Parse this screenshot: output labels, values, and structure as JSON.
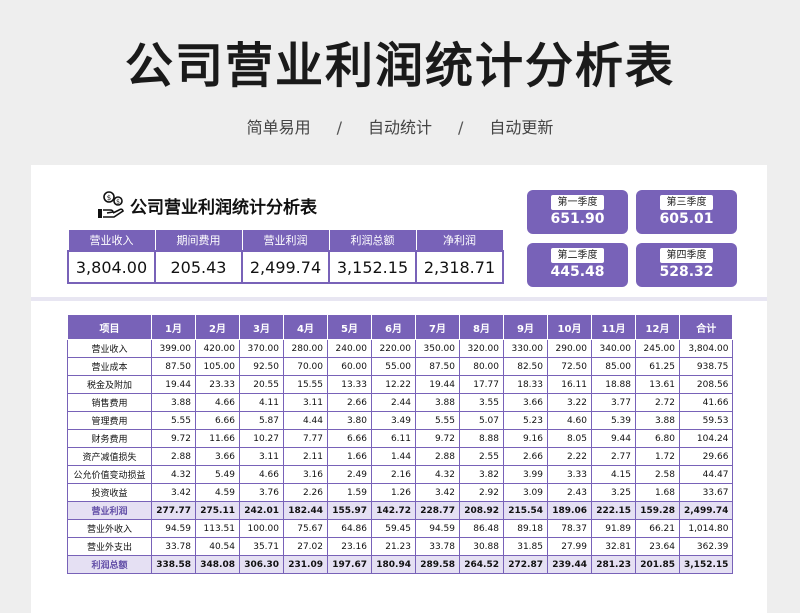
{
  "hero": {
    "title": "公司营业利润统计分析表",
    "tags": [
      "简单易用",
      "自动统计",
      "自动更新"
    ],
    "separator": "/"
  },
  "sheet": {
    "title": "公司营业利润统计分析表",
    "icon": "money-hand-icon",
    "summary": {
      "headers": [
        "营业收入",
        "期间费用",
        "营业利润",
        "利润总额",
        "净利润"
      ],
      "values": [
        "3,804.00",
        "205.43",
        "2,499.74",
        "3,152.15",
        "2,318.71"
      ]
    },
    "quarters": [
      {
        "label": "第一季度",
        "value": "651.90"
      },
      {
        "label": "第三季度",
        "value": "605.01"
      },
      {
        "label": "第二季度",
        "value": "445.48"
      },
      {
        "label": "第四季度",
        "value": "528.32"
      }
    ],
    "table": {
      "headers": [
        "项目",
        "1月",
        "2月",
        "3月",
        "4月",
        "5月",
        "6月",
        "7月",
        "8月",
        "9月",
        "10月",
        "11月",
        "12月",
        "合计"
      ],
      "rows": [
        {
          "cells": [
            "营业收入",
            "399.00",
            "420.00",
            "370.00",
            "280.00",
            "240.00",
            "220.00",
            "350.00",
            "320.00",
            "330.00",
            "290.00",
            "340.00",
            "245.00",
            "3,804.00"
          ]
        },
        {
          "cells": [
            "营业成本",
            "87.50",
            "105.00",
            "92.50",
            "70.00",
            "60.00",
            "55.00",
            "87.50",
            "80.00",
            "82.50",
            "72.50",
            "85.00",
            "61.25",
            "938.75"
          ]
        },
        {
          "cells": [
            "税金及附加",
            "19.44",
            "23.33",
            "20.55",
            "15.55",
            "13.33",
            "12.22",
            "19.44",
            "17.77",
            "18.33",
            "16.11",
            "18.88",
            "13.61",
            "208.56"
          ]
        },
        {
          "cells": [
            "销售费用",
            "3.88",
            "4.66",
            "4.11",
            "3.11",
            "2.66",
            "2.44",
            "3.88",
            "3.55",
            "3.66",
            "3.22",
            "3.77",
            "2.72",
            "41.66"
          ]
        },
        {
          "cells": [
            "管理费用",
            "5.55",
            "6.66",
            "5.87",
            "4.44",
            "3.80",
            "3.49",
            "5.55",
            "5.07",
            "5.23",
            "4.60",
            "5.39",
            "3.88",
            "59.53"
          ]
        },
        {
          "cells": [
            "财务费用",
            "9.72",
            "11.66",
            "10.27",
            "7.77",
            "6.66",
            "6.11",
            "9.72",
            "8.88",
            "9.16",
            "8.05",
            "9.44",
            "6.80",
            "104.24"
          ]
        },
        {
          "cells": [
            "资产减值损失",
            "2.88",
            "3.66",
            "3.11",
            "2.11",
            "1.66",
            "1.44",
            "2.88",
            "2.55",
            "2.66",
            "2.22",
            "2.77",
            "1.72",
            "29.66"
          ]
        },
        {
          "cells": [
            "公允价值变动损益",
            "4.32",
            "5.49",
            "4.66",
            "3.16",
            "2.49",
            "2.16",
            "4.32",
            "3.82",
            "3.99",
            "3.33",
            "4.15",
            "2.58",
            "44.47"
          ]
        },
        {
          "cells": [
            "投资收益",
            "3.42",
            "4.59",
            "3.76",
            "2.26",
            "1.59",
            "1.26",
            "3.42",
            "2.92",
            "3.09",
            "2.43",
            "3.25",
            "1.68",
            "33.67"
          ]
        },
        {
          "cells": [
            "营业利润",
            "277.77",
            "275.11",
            "242.01",
            "182.44",
            "155.97",
            "142.72",
            "228.77",
            "208.92",
            "215.54",
            "189.06",
            "222.15",
            "159.28",
            "2,499.74"
          ],
          "highlight": true
        },
        {
          "cells": [
            "营业外收入",
            "94.59",
            "113.51",
            "100.00",
            "75.67",
            "64.86",
            "59.45",
            "94.59",
            "86.48",
            "89.18",
            "78.37",
            "91.89",
            "66.21",
            "1,014.80"
          ]
        },
        {
          "cells": [
            "营业外支出",
            "33.78",
            "40.54",
            "35.71",
            "27.02",
            "23.16",
            "21.23",
            "33.78",
            "30.88",
            "31.85",
            "27.99",
            "32.81",
            "23.64",
            "362.39"
          ]
        },
        {
          "cells": [
            "利润总额",
            "338.58",
            "348.08",
            "306.30",
            "231.09",
            "197.67",
            "180.94",
            "289.58",
            "264.52",
            "272.87",
            "239.44",
            "281.23",
            "201.85",
            "3,152.15"
          ],
          "highlight": true
        }
      ]
    }
  },
  "colors": {
    "accent": "#7862b8",
    "highlight_row": "#e5e0f3",
    "page_bg": "#eeeeee"
  }
}
